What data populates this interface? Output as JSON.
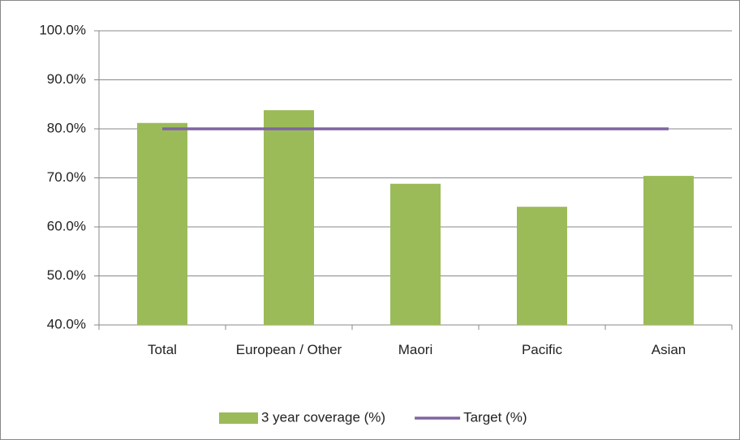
{
  "chart_data": {
    "type": "bar",
    "categories": [
      "Total",
      "European / Other",
      "Maori",
      "Pacific",
      "Asian"
    ],
    "series": [
      {
        "name": "3 year coverage (%)",
        "type": "bar",
        "color": "#9bbb59",
        "values": [
          81.2,
          83.8,
          68.8,
          64.1,
          70.4
        ]
      },
      {
        "name": "Target (%)",
        "type": "line",
        "color": "#8064a2",
        "values": [
          80,
          80,
          80,
          80,
          80
        ]
      }
    ],
    "ylim": [
      40,
      100
    ],
    "yticks": [
      {
        "value": 40,
        "label": "40.0%"
      },
      {
        "value": 50,
        "label": "50.0%"
      },
      {
        "value": 60,
        "label": "60.0%"
      },
      {
        "value": 70,
        "label": "70.0%"
      },
      {
        "value": 80,
        "label": "80.0%"
      },
      {
        "value": 90,
        "label": "90.0%"
      },
      {
        "value": 100,
        "label": "100.0%"
      }
    ],
    "grid": true,
    "legend": "bottom"
  }
}
